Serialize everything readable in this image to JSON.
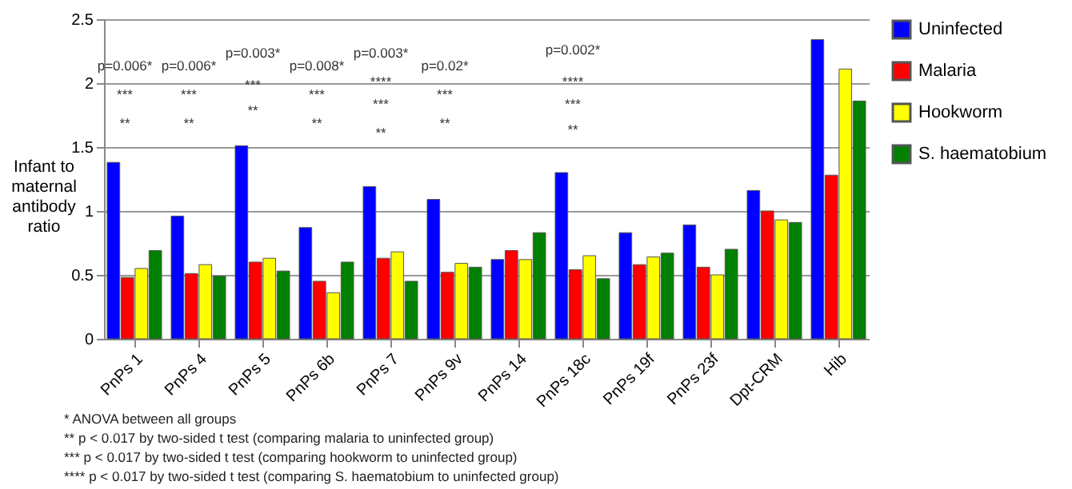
{
  "chart_data": {
    "type": "bar",
    "ylabel": "Infant to maternal antibody ratio",
    "categories": [
      "PnPs 1",
      "PnPs 4",
      "PnPs 5",
      "PnPs 6b",
      "PnPs 7",
      "PnPs 9v",
      "PnPs 14",
      "PnPs 18c",
      "PnPs 19f",
      "PnPs 23f",
      "Dpt-CRM",
      "Hib"
    ],
    "series": [
      {
        "name": "Uninfected",
        "color": "#0000ff",
        "values": [
          1.38,
          0.96,
          1.51,
          0.87,
          1.19,
          1.09,
          0.62,
          1.3,
          0.83,
          0.89,
          1.16,
          2.34
        ]
      },
      {
        "name": "Malaria",
        "color": "#ff0000",
        "values": [
          0.48,
          0.51,
          0.6,
          0.45,
          0.63,
          0.52,
          0.69,
          0.54,
          0.58,
          0.56,
          1.0,
          1.28
        ]
      },
      {
        "name": "Hookworm",
        "color": "#ffff00",
        "values": [
          0.55,
          0.58,
          0.63,
          0.36,
          0.68,
          0.59,
          0.62,
          0.65,
          0.64,
          0.5,
          0.93,
          2.11
        ]
      },
      {
        "name": "S. haematobium",
        "color": "#008000",
        "values": [
          0.69,
          0.49,
          0.53,
          0.6,
          0.45,
          0.56,
          0.83,
          0.47,
          0.67,
          0.7,
          0.91,
          1.86
        ]
      }
    ],
    "ylim": [
      0,
      2.5
    ],
    "yticks": [
      0,
      0.5,
      1,
      1.5,
      2,
      2.5
    ],
    "grid": "y",
    "legend": "right",
    "annotations": [
      "p=0.006*",
      "***",
      "**",
      "p=0.006*",
      "***",
      "**",
      "p=0.003*",
      "***",
      "**",
      "p=0.008*",
      "***",
      "**",
      "p=0.003*",
      "****",
      "***",
      "**",
      "p=0.02*",
      "***",
      "**",
      "p=0.002*",
      "****",
      "***",
      "**",
      "* ANOVA between all groups",
      "** p < 0.017 by two-sided t test (comparing malaria to uninfected group)",
      "*** p < 0.017 by two-sided t test (comparing hookworm to uninfected group)",
      "**** p < 0.017 by two-sided t test (comparing S. haematobium to uninfected group)"
    ]
  }
}
